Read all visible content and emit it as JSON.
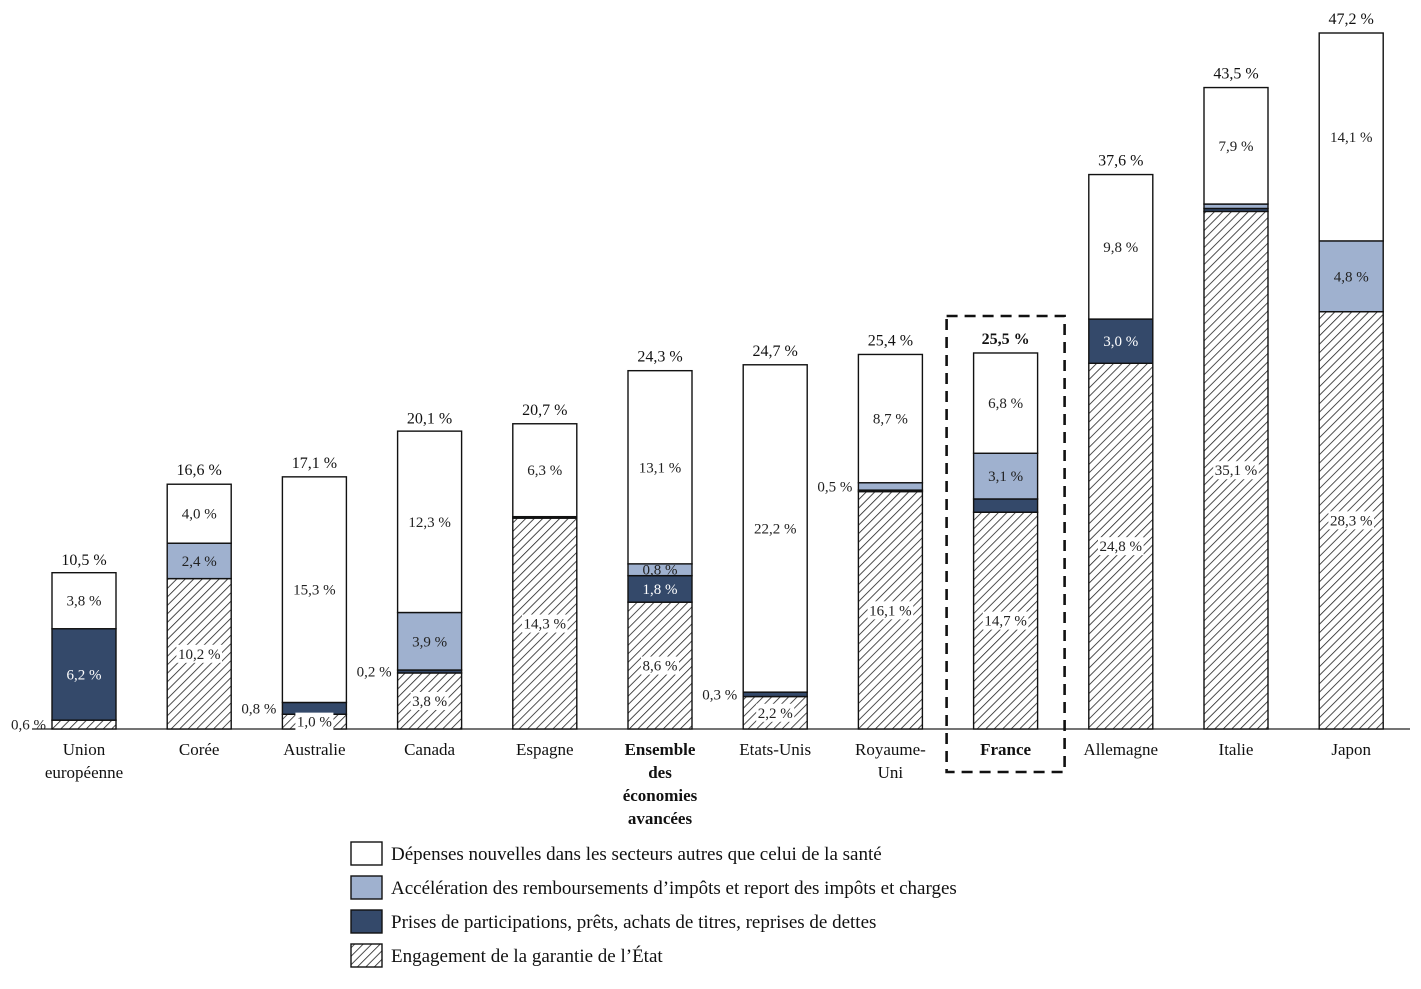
{
  "chart_data": {
    "type": "bar",
    "stacked": true,
    "categories": [
      [
        "Union",
        "européenne"
      ],
      [
        "Corée"
      ],
      [
        "Australie"
      ],
      [
        "Canada"
      ],
      [
        "Espagne"
      ],
      [
        "Ensemble",
        "des",
        "économies",
        "avancées"
      ],
      [
        "Etats-Unis"
      ],
      [
        "Royaume-",
        "Uni"
      ],
      [
        "France"
      ],
      [
        "Allemagne"
      ],
      [
        "Italie"
      ],
      [
        "Japon"
      ]
    ],
    "highlight_index": 8,
    "bold_categories": [
      5,
      8
    ],
    "totals": [
      10.5,
      16.6,
      17.1,
      20.1,
      20.7,
      24.3,
      24.7,
      25.4,
      25.5,
      37.6,
      43.5,
      47.2
    ],
    "total_labels": [
      "10,5 %",
      "16,6 %",
      "17,1 %",
      "20,1 %",
      "20,7 %",
      "24,3 %",
      "24,7 %",
      "25,4 %",
      "25,5 %",
      "37,6 %",
      "43,5 %",
      "47,2 %"
    ],
    "series": [
      {
        "name": "Engagement de la garantie de l’État",
        "style": "hatch",
        "values": [
          0.6,
          10.2,
          1.0,
          3.8,
          14.3,
          8.6,
          2.2,
          16.1,
          14.7,
          24.8,
          35.1,
          28.3
        ],
        "labels": [
          "0,6 %",
          "10,2 %",
          "1,0 %",
          "3,8 %",
          "14,3 %",
          "8,6 %",
          "2,2 %",
          "16,1 %",
          "14,7 %",
          "24,8 %",
          "35,1 %",
          "28,3 %"
        ]
      },
      {
        "name": "Prises de participations, prêts, achats de titres, reprises de dettes",
        "style": "dark",
        "color": "#34496a",
        "values": [
          6.2,
          0.0,
          0.8,
          0.2,
          0.1,
          1.8,
          0.3,
          0.1,
          0.9,
          3.0,
          0.2,
          0.0
        ],
        "labels": [
          "6,2 %",
          "",
          "0,8 %",
          "0,2 %",
          "",
          "1,8 %",
          "0,3 %",
          "",
          "",
          "3,0 %",
          "",
          ""
        ]
      },
      {
        "name": "Accélération des remboursements d’impôts et report des impôts et charges",
        "style": "light",
        "color": "#9fb1cf",
        "values": [
          0.0,
          2.4,
          0.0,
          3.9,
          0.0,
          0.8,
          0.0,
          0.5,
          3.1,
          0.0,
          0.3,
          4.8
        ],
        "labels": [
          "",
          "2,4 %",
          "",
          "3,9 %",
          "",
          "0,8 %",
          "",
          "0,5 %",
          "3,1 %",
          "",
          "",
          "4,8 %"
        ]
      },
      {
        "name": "Dépenses nouvelles dans les secteurs autres que celui de la santé",
        "style": "white",
        "color": "#ffffff",
        "values": [
          3.8,
          4.0,
          15.3,
          12.3,
          6.3,
          13.1,
          22.2,
          8.7,
          6.8,
          9.8,
          7.9,
          14.1
        ],
        "labels": [
          "3,8 %",
          "4,0 %",
          "15,3 %",
          "12,3 %",
          "6,3 %",
          "13,1 %",
          "22,2 %",
          "8,7 %",
          "6,8 %",
          "9,8 %",
          "7,9 %",
          "14,1 %"
        ]
      }
    ],
    "legend_order": [
      3,
      2,
      1,
      0
    ],
    "outside_label_series": {
      "0": [
        0
      ],
      "2": [
        1
      ],
      "3": [
        1
      ],
      "6": [
        1
      ],
      "7": [
        2
      ]
    },
    "ylim": [
      0,
      47.2
    ],
    "grid": false,
    "legend_placement": "bottom"
  }
}
